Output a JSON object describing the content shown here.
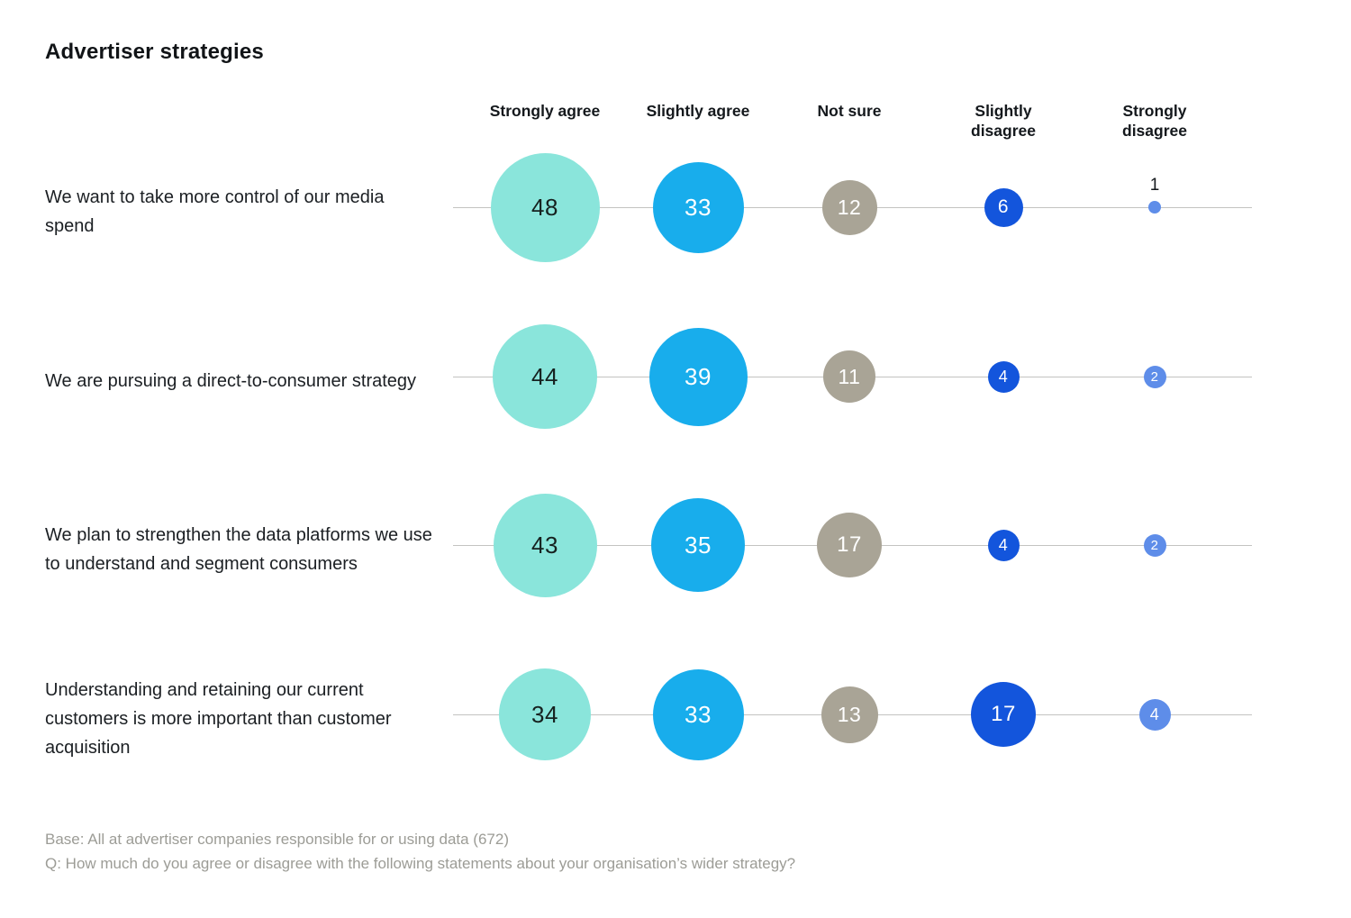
{
  "title": "Advertiser strategies",
  "chart_data": {
    "type": "bubble",
    "columns": [
      "Strongly agree",
      "Slightly agree",
      "Not sure",
      "Slightly disagree",
      "Strongly disagree"
    ],
    "column_colors": [
      "#8AE5DB",
      "#18ADEC",
      "#A9A496",
      "#1355DC",
      "#5E8DE9"
    ],
    "value_text_colors": [
      "#16211f",
      "#ffffff",
      "#ffffff",
      "#ffffff",
      "#ffffff"
    ],
    "rows": [
      {
        "label": "We want to take more control of our media spend",
        "values": [
          48,
          33,
          12,
          6,
          1
        ]
      },
      {
        "label": "We are pursuing a direct-to-consumer strategy",
        "values": [
          44,
          39,
          11,
          4,
          2
        ]
      },
      {
        "label": "We plan to strengthen the data platforms we use to understand and segment consumers",
        "values": [
          43,
          35,
          17,
          4,
          2
        ]
      },
      {
        "label": "Understanding and retaining our current customers is more important than customer acquisition",
        "values": [
          34,
          33,
          13,
          17,
          4
        ]
      }
    ],
    "layout": {
      "legend": "none",
      "grid": "horizontal-row-lines",
      "sizing": "area-proportional-to-value",
      "small_value_label_position": "above-dot-when-value-is-1"
    }
  },
  "footer": {
    "base": "Base: All at advertiser companies responsible for or using data (672)",
    "question": "Q: How much do you agree or disagree with the following statements about your organisation’s wider strategy?"
  }
}
